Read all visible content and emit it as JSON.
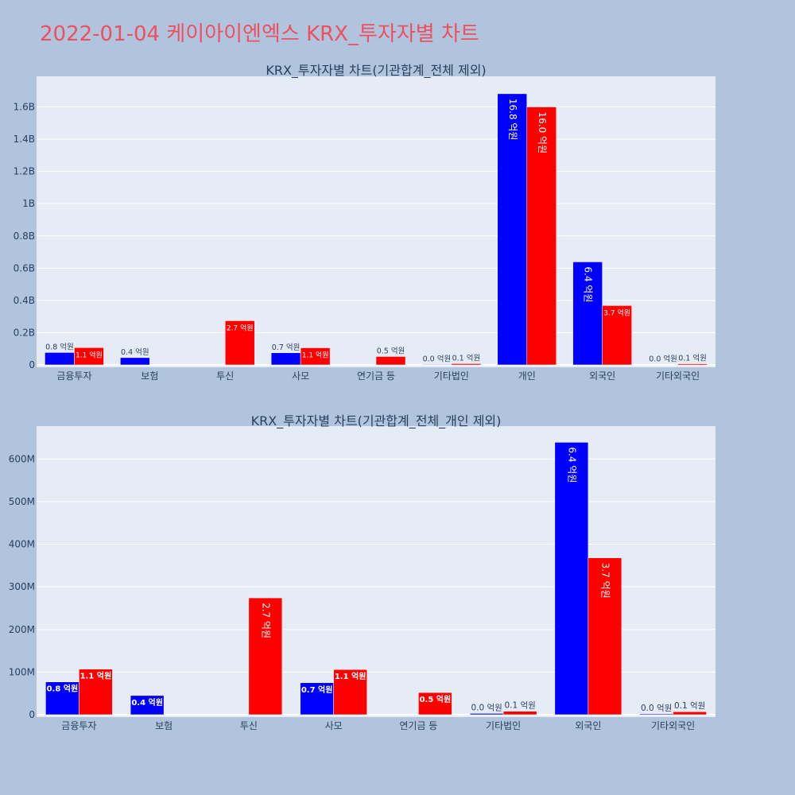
{
  "page": {
    "title": "2022-01-04 케이아이엔엑스 KRX_투자자별 차트"
  },
  "colors": {
    "background": "#b0c4de",
    "plot_bg": "#e5ecf6",
    "blue": "#0000ff",
    "red": "#ff0000",
    "title": "#ef4f5f",
    "text": "#2a3f5f"
  },
  "chart_data": [
    {
      "type": "bar",
      "title": "KRX_투자자별 차트(기관합계_전체 제외)",
      "categories": [
        "금융투자",
        "보험",
        "투신",
        "사모",
        "연기금 등",
        "기타법인",
        "개인",
        "외국인",
        "기타외국인"
      ],
      "ylim": [
        0,
        1790000000
      ],
      "yticks": [
        0,
        200000000,
        400000000,
        600000000,
        800000000,
        1000000000,
        1200000000,
        1400000000,
        1600000000
      ],
      "ytick_labels": [
        "0",
        "0.2B",
        "0.4B",
        "0.6B",
        "0.8B",
        "1B",
        "1.2B",
        "1.4B",
        "1.6B"
      ],
      "grid": true,
      "series": [
        {
          "color": "#0000ff",
          "values": [
            77000000,
            45000000,
            0,
            75000000,
            0,
            3000000,
            1682000000,
            639000000,
            2000000
          ],
          "labels": [
            "0.8 억원",
            "0.4 억원",
            "",
            "0.7 억원",
            "",
            "0.0 억원",
            "16.8 억원",
            "6.4 억원",
            "0.0 억원"
          ]
        },
        {
          "color": "#ff0000",
          "values": [
            107000000,
            0,
            274000000,
            106000000,
            52000000,
            8000000,
            1600000000,
            368000000,
            7000000
          ],
          "labels": [
            "1.1 억원",
            "",
            "2.7 억원",
            "1.1 억원",
            "0.5 억원",
            "0.1 억원",
            "16.0 억원",
            "3.7 억원",
            "0.1 억원"
          ]
        }
      ]
    },
    {
      "type": "bar",
      "title": "KRX_투자자별 차트(기관합계_전체_개인 제외)",
      "categories": [
        "금융투자",
        "보험",
        "투신",
        "사모",
        "연기금 등",
        "기타법인",
        "외국인",
        "기타외국인"
      ],
      "ylim": [
        0,
        677000000
      ],
      "yticks": [
        0,
        100000000,
        200000000,
        300000000,
        400000000,
        500000000,
        600000000
      ],
      "ytick_labels": [
        "0",
        "100M",
        "200M",
        "300M",
        "400M",
        "500M",
        "600M"
      ],
      "grid": true,
      "series": [
        {
          "color": "#0000ff",
          "values": [
            77000000,
            45000000,
            0,
            75000000,
            0,
            3000000,
            639000000,
            2000000
          ],
          "labels": [
            "0.8 억원",
            "0.4 억원",
            "",
            "0.7 억원",
            "",
            "0.0 억원",
            "6.4 억원",
            "0.0 억원"
          ]
        },
        {
          "color": "#ff0000",
          "values": [
            107000000,
            0,
            274000000,
            106000000,
            52000000,
            8000000,
            368000000,
            7000000
          ],
          "labels": [
            "1.1 억원",
            "",
            "2.7 억원",
            "1.1 억원",
            "0.5 억원",
            "0.1 억원",
            "3.7 억원",
            "0.1 억원"
          ]
        }
      ]
    }
  ]
}
